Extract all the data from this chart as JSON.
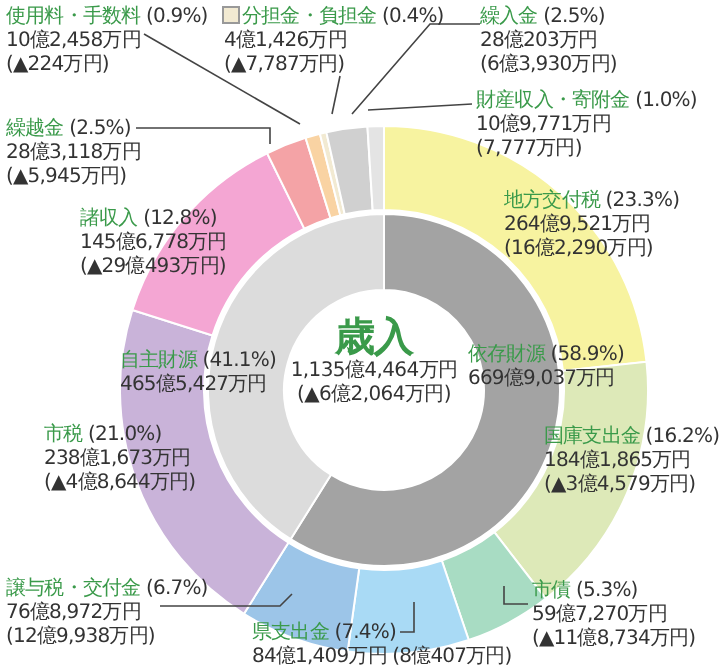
{
  "chart_data": [
    {
      "type": "donut",
      "categories": [
        "地方交付税",
        "国庫支出金",
        "市債",
        "県支出金",
        "譲与税・交付金",
        "市税",
        "諸収入",
        "繰越金",
        "使用料・手数料",
        "分担金・負担金",
        "繰入金",
        "財産収入・寄附金"
      ],
      "values": [
        23.3,
        16.2,
        5.3,
        7.4,
        6.7,
        21.0,
        12.8,
        2.5,
        0.9,
        0.4,
        2.5,
        1.0
      ],
      "colors": [
        "#f7f3a0",
        "#dde9b8",
        "#a8dcc3",
        "#a9daf5",
        "#9cc5e8",
        "#c9b3d9",
        "#f4a6d3",
        "#f4a3a6",
        "#f9d3a3",
        "#f2ead2",
        "#d0d0d0",
        "#e4e4e4"
      ],
      "value_labels": [
        "(23.3%)",
        "(16.2%)",
        "(5.3%)",
        "(7.4%)",
        "(6.7%)",
        "(21.0%)",
        "(12.8%)",
        "(2.5%)",
        "(0.9%)",
        "(0.4%)",
        "(2.5%)",
        "(1.0%)"
      ],
      "annotations": [
        "264億9,521万円",
        "(16億2,290万円)",
        "184億1,865万円",
        "(▲3億4,579万円)",
        "59億7,270万円",
        "(▲11億8,734万円)",
        "84億1,409万円",
        "(8億407万円)",
        "76億8,972万円",
        "(12億9,938万円)",
        "238億1,673万円",
        "(▲4億8,644万円)",
        "145億6,778万円",
        "(▲29億493万円)",
        "28億3,118万円",
        "(▲5,945万円)",
        "10億2,458万円",
        "(▲224万円)",
        "4億1,426万円",
        "(▲7,787万円)",
        "28億203万円",
        "(6億3,930万円)",
        "10億9,771万円",
        "(7,777万円)"
      ]
    },
    {
      "type": "donut",
      "title": "歳入",
      "subtitle": "1,135億4,464万円",
      "categories": [
        "依存財源",
        "自主財源"
      ],
      "values": [
        58.9,
        41.1
      ],
      "colors": [
        "#a3a3a3",
        "#dcdcdc"
      ],
      "value_labels": [
        "(58.9%)",
        "(41.1%)"
      ],
      "annotations": [
        "(▲6億2,064万円)",
        "669億9,037万円",
        "465億5,427万円"
      ]
    }
  ]
}
